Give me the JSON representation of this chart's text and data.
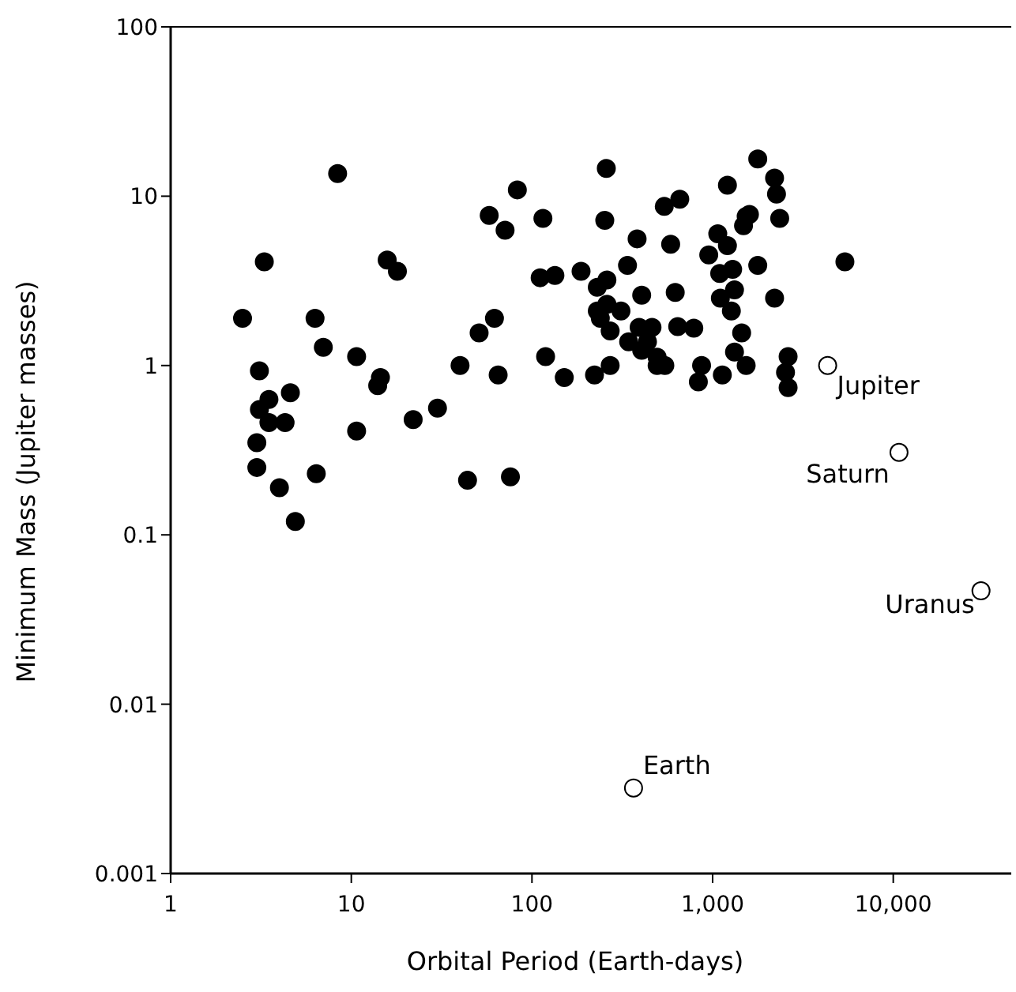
{
  "chart_data": {
    "type": "scatter",
    "xlabel": "Orbital Period (Earth-days)",
    "ylabel": "Minimum Mass (Jupiter masses)",
    "log": "xy",
    "marker": "circle",
    "xlim": [
      1,
      45000
    ],
    "xticks": [
      1,
      10,
      100,
      {
        "value": 1000,
        "label": "1,000"
      },
      {
        "value": 10000,
        "label": "10,000"
      }
    ],
    "ylim": [
      0.001,
      100
    ],
    "yticks": [
      0.001,
      0.01,
      0.1,
      1,
      10,
      100
    ],
    "series": [
      {
        "color": "#000000",
        "x": [
          2.5,
          3.3,
          3.1,
          3.1,
          3.5,
          3.5,
          4.3,
          4.6,
          3.0,
          3.0,
          4.0,
          4.9,
          6.3,
          7.0,
          6.4,
          8.4,
          10.7,
          10.7,
          14.5,
          14,
          15.8,
          18,
          22,
          30,
          40,
          44,
          51,
          58,
          62,
          65,
          71,
          76,
          83,
          111,
          115,
          119,
          134,
          151,
          187,
          222,
          230,
          230,
          239,
          253,
          258,
          260,
          260,
          271,
          271,
          311,
          338,
          343,
          382,
          392,
          405,
          405,
          436,
          462,
          493,
          493,
          544,
          540,
          586,
          621,
          641,
          658,
          787,
          834,
          869,
          952,
          1068,
          1095,
          1104,
          1132,
          1208,
          1208,
          1270,
          1291,
          1322,
          1322,
          1448,
          1483,
          1534,
          1599,
          1534,
          1778,
          1778,
          2203,
          2258,
          2203,
          2352,
          2618,
          2533,
          2618,
          5400
        ],
        "values": [
          1.9,
          4.1,
          0.93,
          0.55,
          0.63,
          0.46,
          0.46,
          0.69,
          0.35,
          0.25,
          0.19,
          0.12,
          1.9,
          1.28,
          0.23,
          13.6,
          1.13,
          0.41,
          0.85,
          0.76,
          4.2,
          3.6,
          0.48,
          0.56,
          1.0,
          0.21,
          1.56,
          7.7,
          1.9,
          0.88,
          6.3,
          0.22,
          10.9,
          3.3,
          7.4,
          1.13,
          3.4,
          0.85,
          3.6,
          0.88,
          2.9,
          2.1,
          1.9,
          7.2,
          14.6,
          3.2,
          2.3,
          1.6,
          1.0,
          2.1,
          3.9,
          1.38,
          5.6,
          1.68,
          2.6,
          1.23,
          1.38,
          1.68,
          1.12,
          1.0,
          1.0,
          8.7,
          5.2,
          2.7,
          1.7,
          9.6,
          1.66,
          0.8,
          1.0,
          4.5,
          6.0,
          3.5,
          2.5,
          0.88,
          5.1,
          11.6,
          2.1,
          3.7,
          2.8,
          1.2,
          1.56,
          6.7,
          7.6,
          7.8,
          1.0,
          16.6,
          3.9,
          12.8,
          10.3,
          2.5,
          7.4,
          1.13,
          0.91,
          0.74,
          4.1
        ]
      },
      {
        "color": "#ffffff",
        "x": [
          4333,
          10759,
          30600,
          365
        ],
        "values": [
          1,
          0.307,
          0.0467,
          0.0032
        ]
      }
    ],
    "annotations": [
      {
        "text": "Jupiter",
        "x": 4333,
        "y": 1
      },
      {
        "text": "Saturn",
        "x": 10759,
        "y": 0.307
      },
      {
        "text": "Uranus",
        "x": 30600,
        "y": 0.0467
      },
      {
        "text": "Earth",
        "x": 365,
        "y": 0.0032
      }
    ]
  }
}
